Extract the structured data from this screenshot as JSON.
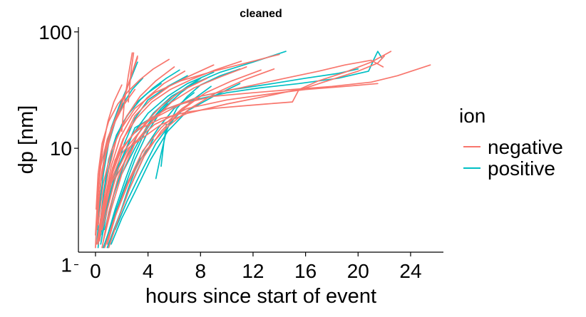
{
  "chart_data": {
    "type": "line",
    "title": "cleaned",
    "xlabel": "hours since start of event",
    "ylabel": "dp [nm]",
    "xlim": [
      -1.3,
      26.5
    ],
    "ylim": [
      1.28,
      110
    ],
    "ylog": true,
    "x_ticks": [
      0,
      4,
      8,
      12,
      16,
      20,
      24
    ],
    "x_tick_labels": [
      "0",
      "4",
      "8",
      "12",
      "16",
      "20",
      "24"
    ],
    "y_ticks": [
      1,
      10,
      100
    ],
    "y_tick_labels": [
      "1",
      "10",
      "100"
    ],
    "grid": false,
    "legend": {
      "title": "ion",
      "position": "right",
      "entries": [
        {
          "label": "negative",
          "color": "#F8766D"
        },
        {
          "label": "positive",
          "color": "#00BFC4"
        }
      ]
    },
    "series": [
      {
        "group": "positive",
        "color": "#00BFC4",
        "x": [
          0.2,
          0.4,
          0.8,
          1.3,
          2.0,
          3.0,
          4.0,
          5.0
        ],
        "y": [
          1.4,
          2.5,
          5,
          10,
          16,
          24,
          30,
          36
        ]
      },
      {
        "group": "positive",
        "color": "#00BFC4",
        "x": [
          0.4,
          0.9,
          1.5,
          2.2,
          3.0,
          4.0,
          5.5,
          7.0
        ],
        "y": [
          1.5,
          3,
          6,
          11,
          18,
          26,
          34,
          42
        ]
      },
      {
        "group": "positive",
        "color": "#00BFC4",
        "x": [
          0.6,
          1.2,
          2.0,
          3.0,
          4.0,
          5.0,
          6.5,
          8.0
        ],
        "y": [
          1.4,
          2.2,
          4,
          8,
          14,
          21,
          30,
          40
        ]
      },
      {
        "group": "positive",
        "color": "#00BFC4",
        "x": [
          0.8,
          1.5,
          2.3,
          3.0,
          3.8,
          4.6,
          5.5
        ],
        "y": [
          1.6,
          3,
          5.5,
          9,
          14,
          19,
          24
        ]
      },
      {
        "group": "positive",
        "color": "#00BFC4",
        "x": [
          1.0,
          1.7,
          2.5,
          3.5,
          4.8,
          6.0,
          7.5
        ],
        "y": [
          1.4,
          2.4,
          4.5,
          9,
          15,
          22,
          30
        ]
      },
      {
        "group": "positive",
        "color": "#00BFC4",
        "x": [
          0.3,
          0.6,
          1.0,
          1.6,
          2.4,
          3.4,
          4.4,
          5.4,
          6.4
        ],
        "y": [
          2,
          4,
          8,
          13,
          19,
          26,
          33,
          40,
          47
        ]
      },
      {
        "group": "positive",
        "color": "#00BFC4",
        "x": [
          0.5,
          1.0,
          1.8,
          2.8,
          4.0,
          5.5,
          7.0,
          9.0
        ],
        "y": [
          1.8,
          3.5,
          7,
          13,
          20,
          28,
          36,
          45
        ]
      },
      {
        "group": "positive",
        "color": "#00BFC4",
        "x": [
          1.2,
          2.0,
          3.0,
          4.2,
          5.5,
          7.0,
          9.0,
          11.0
        ],
        "y": [
          1.5,
          2.5,
          4.2,
          8,
          14,
          21,
          28,
          36
        ]
      },
      {
        "group": "positive",
        "color": "#00BFC4",
        "x": [
          0.2,
          0.4,
          0.7,
          1.2,
          1.8,
          2.5,
          3.2
        ],
        "y": [
          2.5,
          5,
          9,
          15,
          23,
          35,
          55
        ]
      },
      {
        "group": "positive",
        "color": "#00BFC4",
        "x": [
          0.7,
          1.4,
          2.2,
          3.2,
          4.4,
          5.8,
          7.5,
          9.5,
          12,
          14.5
        ],
        "y": [
          2,
          4,
          7.5,
          13,
          20,
          28,
          36,
          45,
          55,
          68
        ]
      },
      {
        "group": "positive",
        "color": "#00BFC4",
        "x": [
          1.5,
          2.4,
          3.4,
          4.6,
          6.0,
          7.4,
          8.8
        ],
        "y": [
          2,
          3.5,
          6,
          11,
          18,
          26,
          34
        ]
      },
      {
        "group": "positive",
        "color": "#00BFC4",
        "x": [
          4.6,
          5.0,
          5.4,
          5.8,
          6.2,
          7.0,
          8.0,
          9.5,
          11.0
        ],
        "y": [
          5.5,
          9,
          14,
          18,
          22,
          28,
          35,
          42,
          48
        ]
      },
      {
        "group": "positive",
        "color": "#00BFC4",
        "x": [
          5.0,
          5.2,
          5.4
        ],
        "y": [
          7,
          11,
          16
        ]
      },
      {
        "group": "positive",
        "color": "#00BFC4",
        "x": [
          0.4,
          1.5,
          3.0,
          5.5,
          8.0,
          10.5,
          13.5,
          16.0,
          18.5,
          20.0
        ],
        "y": [
          2,
          6,
          15,
          22,
          28,
          32,
          36,
          40,
          44,
          48
        ]
      },
      {
        "group": "positive",
        "color": "#00BFC4",
        "x": [
          0.3,
          1.2,
          2.8,
          5.0,
          7.5,
          10.0,
          12.5,
          15.5,
          18.5,
          20.8,
          21.2,
          21.5,
          21.8
        ],
        "y": [
          1.6,
          5,
          13,
          21,
          26,
          30,
          33,
          36,
          40,
          46,
          58,
          68,
          60
        ]
      },
      {
        "group": "positive",
        "color": "#00BFC4",
        "x": [
          0.9,
          1.4,
          2.0,
          2.6,
          3.2,
          3.8,
          4.4
        ],
        "y": [
          1.4,
          2,
          3,
          4.5,
          6.5,
          9,
          12
        ]
      },
      {
        "group": "positive",
        "color": "#00BFC4",
        "x": [
          0.1,
          0.3,
          0.6,
          1.0,
          1.5,
          2.1,
          2.8,
          3.6
        ],
        "y": [
          1.5,
          3,
          6,
          11,
          17,
          24,
          32,
          40
        ]
      },
      {
        "group": "positive",
        "color": "#00BFC4",
        "x": [
          2.0,
          3.0,
          4.0,
          5.0,
          6.0,
          7.0,
          8.0
        ],
        "y": [
          6,
          10,
          16,
          22,
          28,
          34,
          40
        ]
      },
      {
        "group": "positive",
        "color": "#00BFC4",
        "x": [
          0.6,
          1.0,
          1.6,
          2.4,
          3.4,
          4.6
        ],
        "y": [
          1.4,
          1.9,
          3,
          5,
          8,
          12
        ]
      },
      {
        "group": "negative",
        "color": "#F8766D",
        "x": [
          0.0,
          0.1,
          0.2,
          0.35,
          0.55,
          0.8
        ],
        "y": [
          1.4,
          2.5,
          4.5,
          7,
          10,
          14
        ]
      },
      {
        "group": "negative",
        "color": "#F8766D",
        "x": [
          0.1,
          0.25,
          0.5,
          0.9,
          1.5,
          2.2,
          3.0
        ],
        "y": [
          2,
          3.6,
          6.5,
          11,
          17,
          24,
          32
        ]
      },
      {
        "group": "negative",
        "color": "#F8766D",
        "x": [
          0.2,
          0.5,
          1.0,
          1.6,
          2.4,
          3.4,
          4.6,
          6.0
        ],
        "y": [
          1.5,
          3,
          6.5,
          12,
          19,
          28,
          38,
          50
        ]
      },
      {
        "group": "negative",
        "color": "#F8766D",
        "x": [
          0.3,
          0.7,
          1.2,
          1.9,
          2.8,
          3.9,
          5.2,
          6.8
        ],
        "y": [
          1.7,
          3.5,
          7,
          12.5,
          19,
          27,
          36,
          46
        ]
      },
      {
        "group": "negative",
        "color": "#F8766D",
        "x": [
          0.5,
          1.0,
          1.7,
          2.6,
          3.7,
          5.0,
          6.5,
          8.5
        ],
        "y": [
          1.4,
          2.8,
          5.5,
          10,
          16,
          23,
          31,
          40
        ]
      },
      {
        "group": "negative",
        "color": "#F8766D",
        "x": [
          0.15,
          0.4,
          0.8,
          1.3,
          2.0,
          2.6,
          3.2
        ],
        "y": [
          2.5,
          5,
          9,
          15,
          24,
          38,
          60
        ]
      },
      {
        "group": "negative",
        "color": "#F8766D",
        "x": [
          0.1,
          0.4,
          0.9,
          1.6,
          2.3,
          2.8,
          3.2
        ],
        "y": [
          3,
          7,
          12,
          19,
          30,
          45,
          62
        ]
      },
      {
        "group": "negative",
        "color": "#F8766D",
        "x": [
          0.4,
          0.9,
          1.5,
          2.2,
          3.0,
          4.2,
          5.6,
          7.2,
          9.0
        ],
        "y": [
          2,
          4,
          7.5,
          12.5,
          19,
          26,
          34,
          42,
          52
        ]
      },
      {
        "group": "negative",
        "color": "#F8766D",
        "x": [
          0.6,
          1.2,
          2.0,
          3.0,
          4.3,
          5.8,
          7.5,
          9.5,
          11.5
        ],
        "y": [
          1.6,
          3,
          6,
          11,
          17,
          25,
          33,
          41,
          50
        ]
      },
      {
        "group": "negative",
        "color": "#F8766D",
        "x": [
          0.2,
          0.6,
          1.2,
          2.0,
          3.0,
          4.5,
          6.5,
          9.0,
          12.0,
          14.0
        ],
        "y": [
          2.2,
          5,
          9.5,
          15,
          22,
          30,
          38,
          46,
          56,
          64
        ]
      },
      {
        "group": "negative",
        "color": "#F8766D",
        "x": [
          0.9,
          1.6,
          2.5,
          3.6,
          5.0,
          6.6,
          8.4,
          10.4,
          12.6
        ],
        "y": [
          1.5,
          2.8,
          5.2,
          9.5,
          15,
          22,
          30,
          38,
          47
        ]
      },
      {
        "group": "negative",
        "color": "#F8766D",
        "x": [
          0.3,
          1.0,
          2.0,
          3.5,
          5.5,
          8.0,
          11.0,
          14.0,
          17.0,
          19.0,
          21.0,
          21.9
        ],
        "y": [
          2,
          5,
          10,
          16,
          22,
          28,
          33,
          39,
          46,
          52,
          57,
          50
        ]
      },
      {
        "group": "negative",
        "color": "#F8766D",
        "x": [
          0.5,
          1.5,
          3.0,
          5.0,
          7.0,
          10.0,
          13.0,
          16.0,
          18.0,
          20.0,
          21.5,
          22.0
        ],
        "y": [
          2,
          5.5,
          11,
          16,
          20,
          24,
          28,
          33,
          39,
          46,
          54,
          62
        ]
      },
      {
        "group": "negative",
        "color": "#F8766D",
        "x": [
          0.1,
          0.5,
          1.5,
          3.0,
          5.0,
          7.0,
          9.0,
          11.0,
          13.0,
          15.0,
          15.5,
          17.0,
          19.0,
          21.0,
          22.5
        ],
        "y": [
          1.5,
          3,
          8,
          14,
          18,
          20.5,
          22,
          23,
          24,
          25,
          32,
          38,
          45,
          55,
          68
        ]
      },
      {
        "group": "negative",
        "color": "#F8766D",
        "x": [
          0.2,
          0.8,
          2.0,
          4.0,
          6.5,
          9.0,
          12.0,
          15.0,
          18.0,
          21.0,
          23.0,
          25.5
        ],
        "y": [
          1.7,
          4,
          9,
          17,
          24,
          28,
          30,
          32,
          34,
          37,
          42,
          52
        ]
      },
      {
        "group": "negative",
        "color": "#F8766D",
        "x": [
          0.4,
          1.2,
          2.5,
          4.5,
          7.0,
          10.0,
          13.0,
          16.0,
          19.0,
          21.5
        ],
        "y": [
          2,
          5,
          10,
          16,
          22,
          26,
          29,
          32,
          34,
          36
        ]
      },
      {
        "group": "negative",
        "color": "#F8766D",
        "x": [
          0.7,
          1.5,
          2.5,
          3.8,
          5.4,
          7.2,
          9.2,
          11.4,
          13.6
        ],
        "y": [
          1.4,
          2.6,
          5,
          9.5,
          15,
          22,
          30,
          39,
          48
        ]
      },
      {
        "group": "negative",
        "color": "#F8766D",
        "x": [
          0.0,
          0.15,
          0.35,
          0.6,
          0.95,
          1.4,
          2.0
        ],
        "y": [
          1.8,
          3.5,
          6.5,
          11,
          17,
          25,
          35
        ]
      },
      {
        "group": "negative",
        "color": "#F8766D",
        "x": [
          1.0,
          1.7,
          2.6,
          3.7,
          5.0,
          6.5,
          8.2
        ],
        "y": [
          1.4,
          2.4,
          4.5,
          8.5,
          14,
          21,
          29
        ]
      },
      {
        "group": "negative",
        "color": "#F8766D",
        "x": [
          0.05,
          0.2,
          0.5,
          1.0,
          1.7,
          2.5,
          3.4,
          4.4,
          5.6
        ],
        "y": [
          3,
          6,
          11,
          17,
          24,
          31,
          39,
          48,
          58
        ]
      },
      {
        "group": "negative",
        "color": "#F8766D",
        "x": [
          0.3,
          0.7,
          1.3,
          2.1,
          3.1,
          4.3,
          5.7,
          7.3,
          9.1,
          11.1
        ],
        "y": [
          1.6,
          3.4,
          6.8,
          12,
          18,
          25,
          32,
          39,
          47,
          56
        ]
      },
      {
        "group": "negative",
        "color": "#F8766D",
        "x": [
          2.0,
          2.2,
          2.5,
          2.8
        ],
        "y": [
          14,
          25,
          42,
          66
        ]
      },
      {
        "group": "negative",
        "color": "#F8766D",
        "x": [
          2.5,
          2.7,
          2.9
        ],
        "y": [
          25,
          45,
          66
        ]
      }
    ]
  }
}
